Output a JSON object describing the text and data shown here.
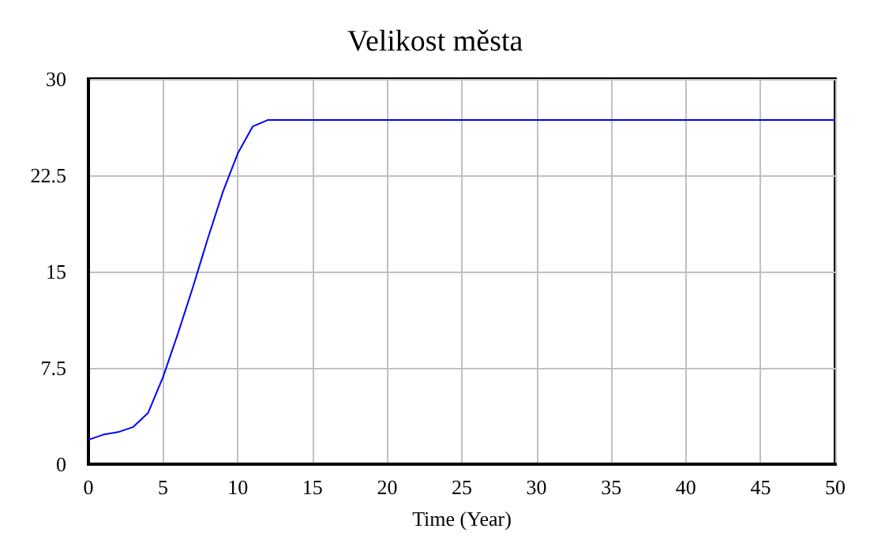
{
  "chart_data": {
    "type": "line",
    "title": "Velikost města",
    "xlabel": "Time (Year)",
    "x": [
      0,
      1,
      2,
      3,
      4,
      5,
      6,
      7,
      8,
      9,
      10,
      11,
      12,
      50
    ],
    "series": [
      {
        "color": "#0000ff",
        "values": [
          1.9,
          2.3,
          2.5,
          2.9,
          4.0,
          6.8,
          10.2,
          13.8,
          17.6,
          21.2,
          24.2,
          26.3,
          26.8,
          26.8
        ]
      }
    ],
    "xlim": [
      0,
      50
    ],
    "xticks": [
      0,
      5,
      10,
      15,
      20,
      25,
      30,
      35,
      40,
      45,
      50
    ],
    "ylim": [
      0,
      30
    ],
    "yticks": [
      0,
      7.5,
      15,
      22.5,
      30
    ],
    "grid": true,
    "marker": "none",
    "line_style": "solid"
  }
}
